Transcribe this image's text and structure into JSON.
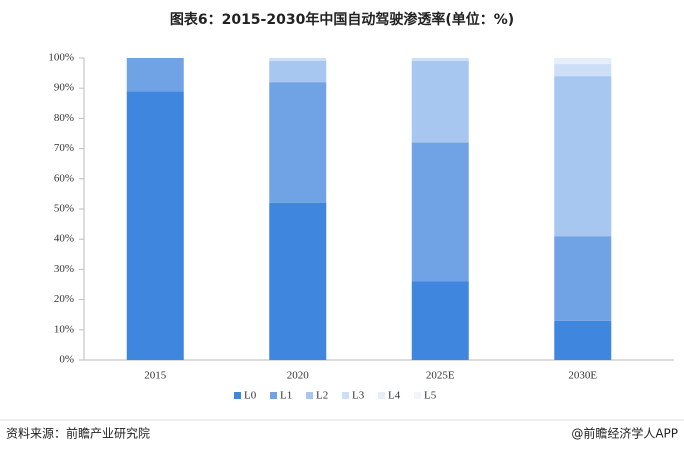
{
  "chart_data": {
    "type": "stacked-bar",
    "title": "图表6：2015-2030年中国自动驾驶渗透率(单位：%)",
    "categories": [
      "2015",
      "2020",
      "2025E",
      "2030E"
    ],
    "series": [
      {
        "name": "L0",
        "color": "#3f86de",
        "values": [
          89,
          52,
          26,
          13
        ]
      },
      {
        "name": "L1",
        "color": "#6fa3e6",
        "values": [
          11,
          40,
          46,
          28
        ]
      },
      {
        "name": "L2",
        "color": "#a7c6f0",
        "values": [
          0,
          7,
          27,
          53
        ]
      },
      {
        "name": "L3",
        "color": "#cddff7",
        "values": [
          0,
          1,
          1,
          4
        ]
      },
      {
        "name": "L4",
        "color": "#e6eefa",
        "values": [
          0,
          0,
          0,
          2
        ]
      },
      {
        "name": "L5",
        "color": "#f2f6fc",
        "values": [
          0,
          0,
          0,
          0
        ]
      }
    ],
    "ylim": [
      0,
      100
    ],
    "yticks": [
      {
        "value": 0,
        "label": "0%"
      },
      {
        "value": 10,
        "label": "10%"
      },
      {
        "value": 20,
        "label": "20%"
      },
      {
        "value": 30,
        "label": "30%"
      },
      {
        "value": 40,
        "label": "40%"
      },
      {
        "value": 50,
        "label": "50%"
      },
      {
        "value": 60,
        "label": "60%"
      },
      {
        "value": 70,
        "label": "70%"
      },
      {
        "value": 80,
        "label": "80%"
      },
      {
        "value": 90,
        "label": "90%"
      },
      {
        "value": 100,
        "label": "100%"
      }
    ],
    "source": "资料来源：前瞻产业研究院",
    "footer": "@前瞻经济学人APP"
  }
}
